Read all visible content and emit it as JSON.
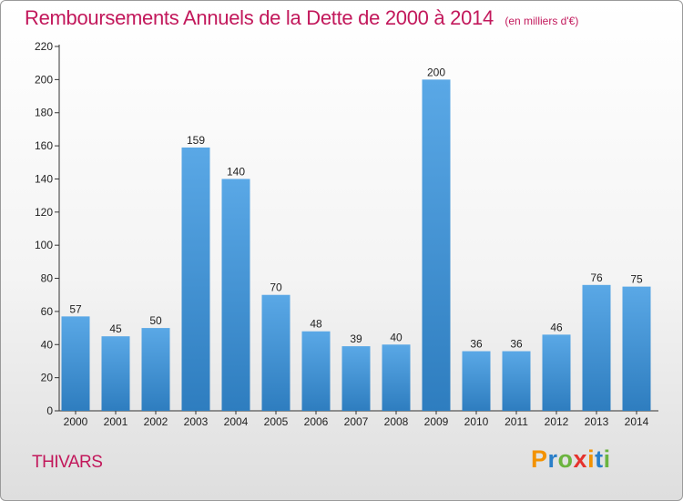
{
  "title": "Remboursements Annuels de la Dette de 2000 à 2014",
  "subtitle": "(en milliers d'€)",
  "commune": "THIVARS",
  "logo": {
    "letters": [
      "P",
      "r",
      "o",
      "x",
      "i",
      "t",
      "i"
    ],
    "colors": [
      "#f39200",
      "#2a7fc9",
      "#6bb43f",
      "#e5322d",
      "#f39200",
      "#2a7fc9",
      "#6bb43f"
    ]
  },
  "colors": {
    "title": "#c2185b",
    "bar_light": "#5aa8e6",
    "bar_dark": "#2e7dbf"
  },
  "chart_data": {
    "type": "bar",
    "categories": [
      "2000",
      "2001",
      "2002",
      "2003",
      "2004",
      "2005",
      "2006",
      "2007",
      "2008",
      "2009",
      "2010",
      "2011",
      "2012",
      "2013",
      "2014"
    ],
    "values": [
      57,
      45,
      50,
      159,
      140,
      70,
      48,
      39,
      40,
      200,
      36,
      36,
      46,
      76,
      75
    ],
    "ylim": [
      0,
      220
    ],
    "yticks": [
      0,
      20,
      40,
      60,
      80,
      100,
      120,
      140,
      160,
      180,
      200,
      220
    ],
    "grid": false,
    "legend": "none"
  }
}
